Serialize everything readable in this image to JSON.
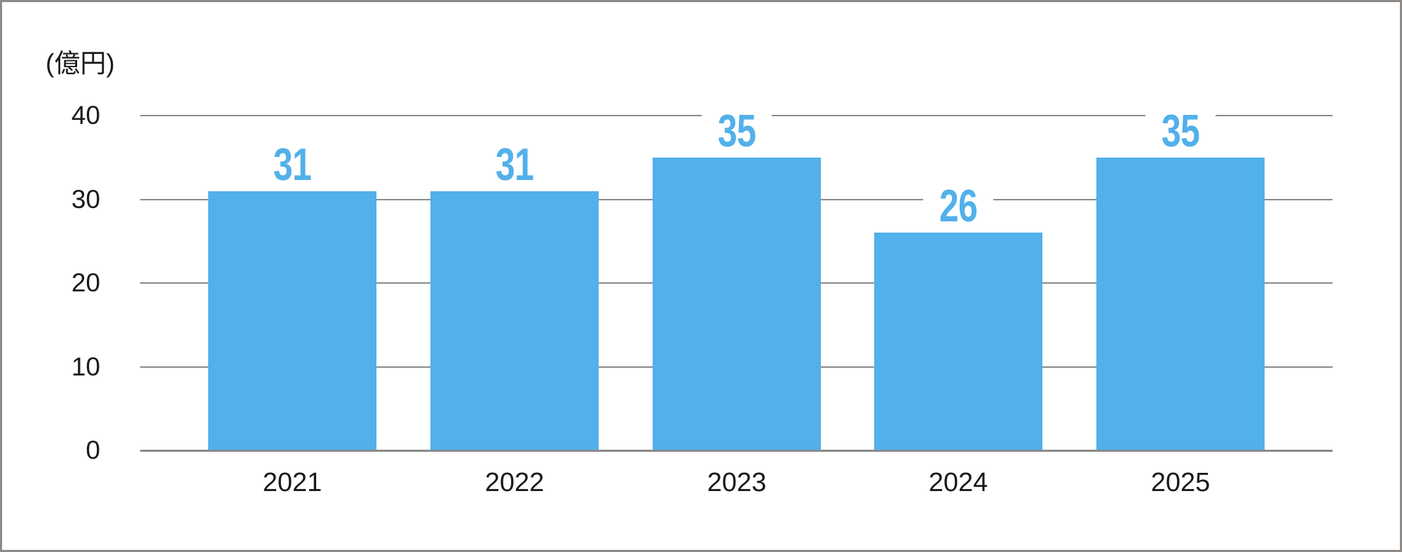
{
  "chart_data": {
    "type": "bar",
    "title": "",
    "unit_label": "(億円)",
    "categories": [
      "2021",
      "2022",
      "2023",
      "2024",
      "2025"
    ],
    "values": [
      31,
      31,
      35,
      26,
      35
    ],
    "xlabel": "",
    "ylabel": "(億円)",
    "y_ticks": [
      0,
      10,
      20,
      30,
      40
    ],
    "ylim": [
      0,
      40
    ],
    "grid": "horizontal gridlines on, white background",
    "legend": "none",
    "bar_color": "#52B0EA",
    "value_label_color": "#52B0EA",
    "gridline_color": "#8a8a8a",
    "axis_text_color": "#1a1a1a",
    "frame_border_color": "#8e8a88"
  }
}
